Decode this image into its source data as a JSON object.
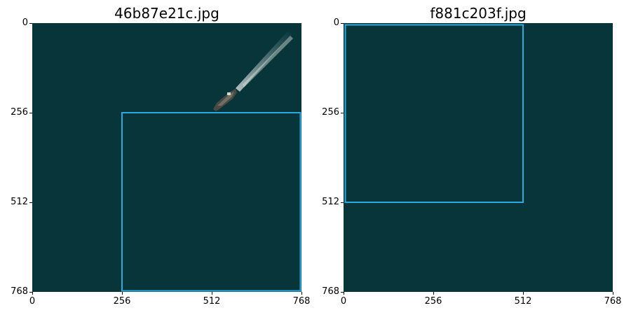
{
  "panels": [
    {
      "title": "46b87e21c.jpg",
      "image_size": 768,
      "content": "ship-with-wake",
      "box": {
        "x0": 256,
        "y0": 256,
        "x1": 765,
        "y1": 765
      },
      "x_ticks": [
        "0",
        "256",
        "512",
        "768"
      ],
      "y_ticks": [
        "0",
        "256",
        "512",
        "768"
      ]
    },
    {
      "title": "f881c203f.jpg",
      "image_size": 768,
      "content": "open-water",
      "box": {
        "x0": 5,
        "y0": 5,
        "x1": 512,
        "y1": 512
      },
      "x_ticks": [
        "0",
        "256",
        "512",
        "768"
      ],
      "y_ticks": [
        "0",
        "256",
        "512",
        "768"
      ]
    }
  ],
  "colors": {
    "water": "#07353a",
    "box": "#29abe2"
  }
}
